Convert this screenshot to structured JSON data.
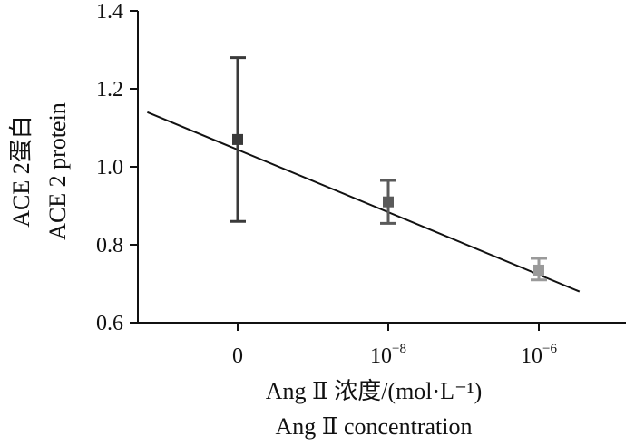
{
  "chart_data": {
    "type": "scatter",
    "title": "",
    "xlabel": "Ang Ⅱ 浓度/(mol·L⁻¹)",
    "xlabel_en": "Ang Ⅱ concentration",
    "ylabel": "ACE 2蛋白",
    "ylabel_en": "ACE 2 protein",
    "categories": [
      "0",
      "10-8",
      "10-6"
    ],
    "x_tick_labels": [
      {
        "base": "0",
        "exp": ""
      },
      {
        "base": "10",
        "exp": "−8"
      },
      {
        "base": "10",
        "exp": "−6"
      }
    ],
    "ylim": [
      0.6,
      1.4
    ],
    "y_ticks": [
      "0.6",
      "0.8",
      "1.0",
      "1.2",
      "1.4"
    ],
    "grid": false,
    "series": [
      {
        "values": [
          1.07,
          0.91,
          0.735
        ],
        "error_low": [
          0.86,
          0.855,
          0.71
        ],
        "error_high": [
          1.28,
          0.965,
          0.765
        ],
        "colors": [
          "#3a3a3a",
          "#5a5a5a",
          "#9a9a9a"
        ]
      }
    ],
    "trendline": {
      "start_x_index": -0.6,
      "start_y": 1.14,
      "end_x_index": 2.27,
      "end_y": 0.68,
      "color": "#111111"
    }
  }
}
